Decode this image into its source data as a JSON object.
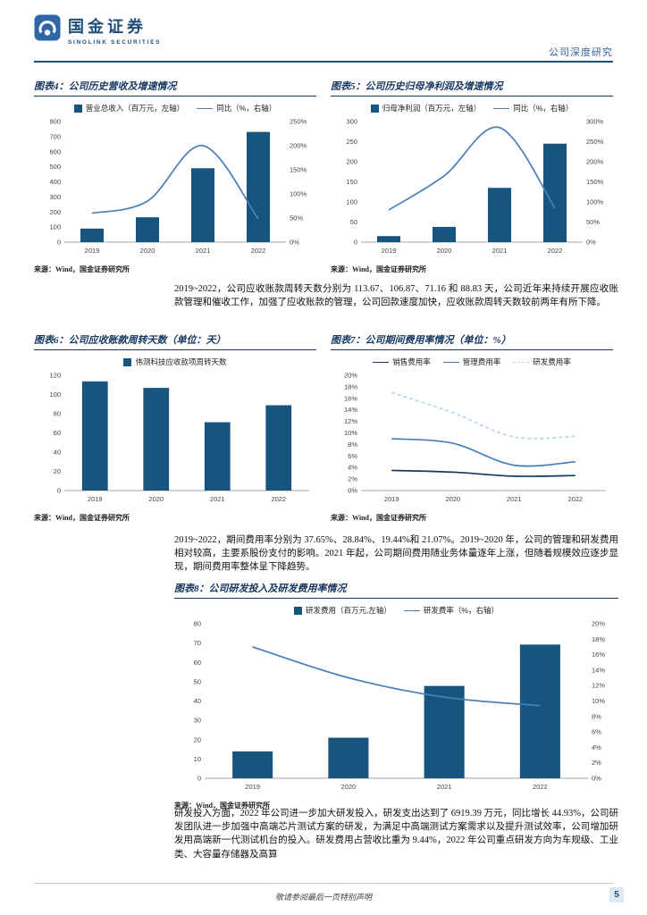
{
  "colors": {
    "bar": "#17547E",
    "line": "#4A7EBB",
    "line_dark": "#17375E",
    "line_light": "#BCD4EC",
    "navy": "#15365F",
    "header_blue": "#1F4E79"
  },
  "header": {
    "brand": "国金证券",
    "brand_sub": "SINOLINK SECURITIES",
    "doc_type": "公司深度研究"
  },
  "paragraphs": {
    "p1": "2019~2022，公司应收账款周转天数分别为 113.67、106.87、71.16 和 88.83 天，公司近年来持续开展应收账款管理和催收工作，加强了应收账款的管理，公司回款速度加快，应收账款周转天数较前两年有所下降。",
    "p2": "2019~2022，期间费用率分别为 37.65%、28.84%、19.44%和 21.07%。2019~2020 年，公司的管理和研发费用相对较高，主要系股份支付的影响。2021 年起，公司期间费用随业务体量逐年上涨，但随着规模效应逐步显现，期间费用率整体呈下降趋势。",
    "p3": "研发投入方面，2022 年公司进一步加大研发投入，研发支出达到了 6919.39 万元，同比增长 44.93%，公司研发团队进一步加强中高端芯片测试方案的研发，为满足中高端测试方案需求以及提升测试效率，公司增加研发用高端新一代测试机台的投入。研发费用占营收比重为 9.44%，2022 年公司重点研发方向为车规级、工业类、大容量存储器及高算"
  },
  "charts": {
    "chart4": {
      "title": "图表4：公司历史营收及增速情况",
      "source": "来源：Wind，国金证券研究所",
      "chart_data": {
        "type": "combo",
        "categories": [
          "2019",
          "2020",
          "2021",
          "2022"
        ],
        "bar": {
          "name": "营业总收入（百万元，左轴）",
          "values": [
            90,
            165,
            490,
            731
          ],
          "axis": "left"
        },
        "lines": [
          {
            "name": "同比（%，右轴）",
            "values": [
              60,
              85,
              200,
              48
            ],
            "axis": "right",
            "color": "#4A7EBB",
            "dash": false
          }
        ],
        "left_axis": {
          "min": 0,
          "max": 800,
          "step": 100,
          "suffix": ""
        },
        "right_axis": {
          "min": 0,
          "max": 250,
          "step": 50,
          "suffix": "%"
        }
      }
    },
    "chart5": {
      "title": "图表5：公司历史归母净利润及增速情况",
      "source": "来源：Wind，国金证券研究所",
      "chart_data": {
        "type": "combo",
        "categories": [
          "2019",
          "2020",
          "2021",
          "2022"
        ],
        "bar": {
          "name": "归母净利润（百万元，左轴）",
          "values": [
            15,
            38,
            135,
            245
          ],
          "axis": "left"
        },
        "lines": [
          {
            "name": "同比（%，右轴）",
            "values": [
              80,
              165,
              285,
              85
            ],
            "axis": "right",
            "color": "#4A7EBB",
            "dash": false
          }
        ],
        "left_axis": {
          "min": 0,
          "max": 300,
          "step": 50,
          "suffix": ""
        },
        "right_axis": {
          "min": 0,
          "max": 300,
          "step": 50,
          "suffix": "%"
        }
      }
    },
    "chart6": {
      "title": "图表6：公司应收账款周转天数（单位：天）",
      "source": "来源：Wind，国金证券研究所",
      "chart_data": {
        "type": "bar",
        "categories": [
          "2019",
          "2020",
          "2021",
          "2022"
        ],
        "bar": {
          "name": "伟测科技应收款项周转天数",
          "values": [
            113.67,
            106.87,
            71.16,
            88.83
          ],
          "axis": "left"
        },
        "left_axis": {
          "min": 0,
          "max": 120,
          "step": 20,
          "suffix": ""
        }
      }
    },
    "chart7": {
      "title": "图表7：公司期间费用率情况（单位：%）",
      "source": "来源：Wind，国金证券研究所",
      "chart_data": {
        "type": "line",
        "categories": [
          "2019",
          "2020",
          "2021",
          "2022"
        ],
        "lines": [
          {
            "name": "销售费用率",
            "values": [
              3.5,
              3.2,
              2.5,
              2.6
            ],
            "axis": "left",
            "color": "#17375E",
            "dash": false
          },
          {
            "name": "管理费用率",
            "values": [
              9,
              8.2,
              4.4,
              5
            ],
            "axis": "left",
            "color": "#4A7EBB",
            "dash": false
          },
          {
            "name": "研发费用率",
            "values": [
              17,
              13.5,
              9.3,
              9.4
            ],
            "axis": "left",
            "color": "#BCD4EC",
            "dash": true
          }
        ],
        "left_axis": {
          "min": 0,
          "max": 20,
          "step": 2,
          "suffix": "%"
        }
      }
    },
    "chart8": {
      "title": "图表8：公司研发投入及研发费用率情况",
      "source": "来源：Wind，国金证券研究所",
      "chart_data": {
        "type": "combo",
        "categories": [
          "2019",
          "2020",
          "2021",
          "2022"
        ],
        "bar": {
          "name": "研发费用（百万元,左轴）",
          "values": [
            13.9,
            21,
            47.8,
            69.2
          ],
          "axis": "left"
        },
        "lines": [
          {
            "name": "研发费率（%，右轴）",
            "values": [
              17,
              13,
              10.5,
              9.4
            ],
            "axis": "right",
            "color": "#4A7EBB",
            "dash": false
          }
        ],
        "left_axis": {
          "min": 0,
          "max": 80,
          "step": 10,
          "suffix": ""
        },
        "right_axis": {
          "min": 0,
          "max": 20,
          "step": 2,
          "suffix": "%"
        }
      }
    }
  },
  "footer": {
    "notice": "敬请参阅最后一页特别声明",
    "page": "5"
  }
}
